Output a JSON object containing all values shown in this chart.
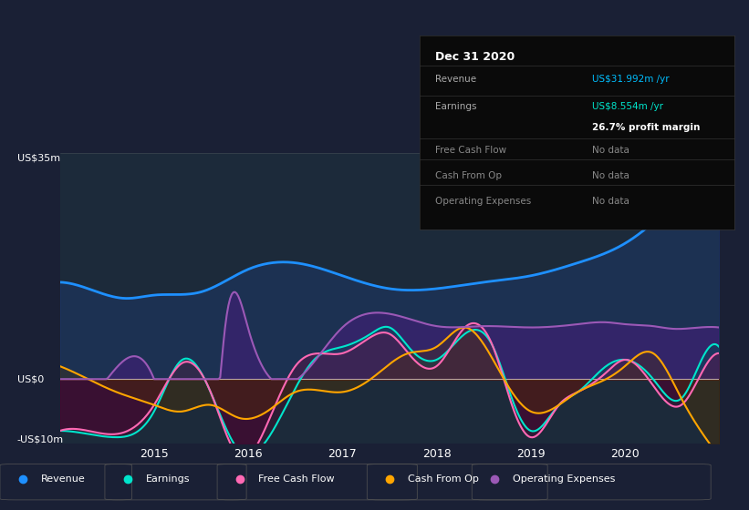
{
  "bg_color": "#1a2035",
  "chart_bg": "#1e2d45",
  "plot_bg": "#1a2640",
  "title": "Dec 31 2020",
  "tooltip": {
    "title": "Dec 31 2020",
    "rows": [
      {
        "label": "Revenue",
        "value": "US$31.992m /yr",
        "value_color": "#00bfff"
      },
      {
        "label": "Earnings",
        "value": "US$8.554m /yr",
        "value_color": "#00e5cc"
      },
      {
        "label": "",
        "value": "26.7% profit margin",
        "value_color": "#ffffff"
      },
      {
        "label": "Free Cash Flow",
        "value": "No data",
        "value_color": "#888888"
      },
      {
        "label": "Cash From Op",
        "value": "No data",
        "value_color": "#888888"
      },
      {
        "label": "Operating Expenses",
        "value": "No data",
        "value_color": "#888888"
      }
    ]
  },
  "ylabel_top": "US$35m",
  "ylabel_zero": "US$0",
  "ylabel_bottom": "-US$10m",
  "x_ticks": [
    2015,
    2016,
    2017,
    2018,
    2019,
    2020
  ],
  "legend": [
    {
      "label": "Revenue",
      "color": "#1e90ff"
    },
    {
      "label": "Earnings",
      "color": "#00e5cc"
    },
    {
      "label": "Free Cash Flow",
      "color": "#ff69b4"
    },
    {
      "label": "Cash From Op",
      "color": "#ffa500"
    },
    {
      "label": "Operating Expenses",
      "color": "#9b59b6"
    }
  ],
  "revenue_color": "#1e90ff",
  "earnings_color": "#00e5cc",
  "free_cash_color": "#ff69b4",
  "cash_from_op_color": "#ffa500",
  "op_exp_color": "#9b59b6",
  "revenue_fill": "#1e3a5f",
  "earnings_fill_pos": "#1a5f5f",
  "earnings_fill_neg": "#3a1a2a",
  "op_exp_fill": "#4a2080"
}
